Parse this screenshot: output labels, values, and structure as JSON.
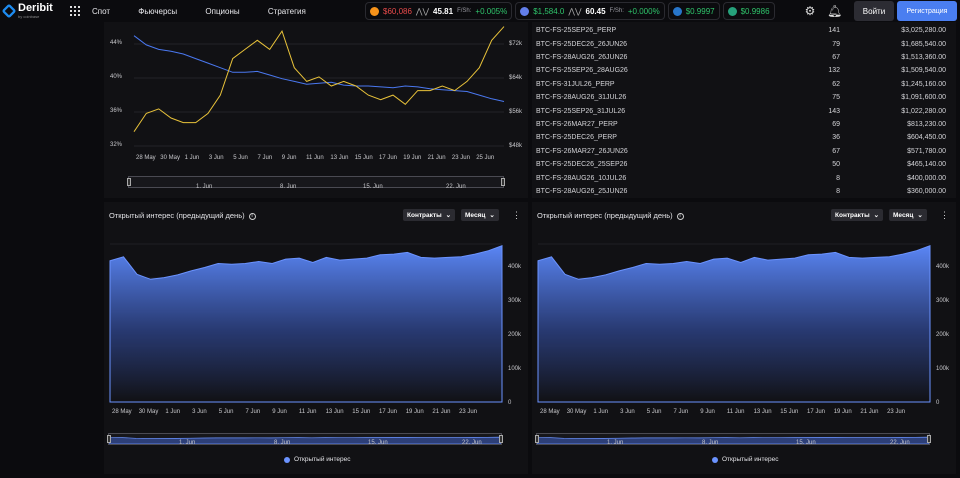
{
  "header": {
    "brand": "Deribit",
    "brand_sub": "by coinbase",
    "nav": [
      "Спот",
      "Фьючерсы",
      "Опционы",
      "Стратегия"
    ],
    "tickers": [
      {
        "icon": "btc-coin-icon",
        "color": "#f7931a",
        "value": "$60,086",
        "value_class": "neg",
        "extra": "",
        "change": ""
      },
      {
        "icon": "vol-icon",
        "color": "#888888",
        "value": "45.81",
        "value_class": "bold",
        "extra": "F/Sh:",
        "change": "+0.005%"
      },
      {
        "icon": "eth-coin-icon",
        "color": "#627eea",
        "value": "$1,584.0",
        "value_class": "pos",
        "extra": "",
        "change": ""
      },
      {
        "icon": "vol-icon",
        "color": "#888888",
        "value": "60.45",
        "value_class": "bold",
        "extra": "F/Sh:",
        "change": "+0.000%"
      },
      {
        "icon": "usdc-coin-icon",
        "color": "#2775ca",
        "value": "$0.9997",
        "value_class": "pos",
        "extra": "",
        "change": ""
      },
      {
        "icon": "usdt-coin-icon",
        "color": "#26a17b",
        "value": "$0.9986",
        "value_class": "pos",
        "extra": "",
        "change": ""
      }
    ],
    "login": "Войти",
    "register": "Регистрация"
  },
  "top_chart": {
    "y_left": [
      "44%",
      "40%",
      "36%",
      "32%"
    ],
    "y_right": [
      "$72k",
      "$64k",
      "$56k",
      "$48k"
    ],
    "x_labels": [
      "28 May",
      "30 May",
      "1 Jun",
      "3 Jun",
      "5 Jun",
      "7 Jun",
      "9 Jun",
      "11 Jun",
      "13 Jun",
      "15 Jun",
      "17 Jun",
      "19 Jun",
      "21 Jun",
      "23 Jun",
      "25 Jun"
    ],
    "nav_labels": [
      "1. Jun",
      "8. Jun",
      "15. Jun",
      "22. Jun"
    ]
  },
  "table": {
    "rows": [
      {
        "inst": "BTC-FS-25SEP26_PERP",
        "cnt": "141",
        "val": "$3,025,280.00"
      },
      {
        "inst": "BTC-FS-25DEC26_26JUN26",
        "cnt": "79",
        "val": "$1,685,540.00"
      },
      {
        "inst": "BTC-FS-28AUG26_26JUN26",
        "cnt": "67",
        "val": "$1,513,360.00"
      },
      {
        "inst": "BTC-FS-25SEP26_28AUG26",
        "cnt": "132",
        "val": "$1,509,540.00"
      },
      {
        "inst": "BTC-FS-31JUL26_PERP",
        "cnt": "62",
        "val": "$1,245,160.00"
      },
      {
        "inst": "BTC-FS-28AUG26_31JUL26",
        "cnt": "75",
        "val": "$1,091,600.00"
      },
      {
        "inst": "BTC-FS-25SEP26_31JUL26",
        "cnt": "143",
        "val": "$1,022,280.00"
      },
      {
        "inst": "BTC-FS-26MAR27_PERP",
        "cnt": "69",
        "val": "$813,230.00"
      },
      {
        "inst": "BTC-FS-25DEC26_PERP",
        "cnt": "36",
        "val": "$604,450.00"
      },
      {
        "inst": "BTC-FS-26MAR27_26JUN26",
        "cnt": "67",
        "val": "$571,780.00"
      },
      {
        "inst": "BTC-FS-25DEC26_25SEP26",
        "cnt": "50",
        "val": "$465,140.00"
      },
      {
        "inst": "BTC-FS-28AUG26_10JUL26",
        "cnt": "8",
        "val": "$400,000.00"
      },
      {
        "inst": "BTC-FS-28AUG26_25JUN26",
        "cnt": "8",
        "val": "$360,000.00"
      }
    ]
  },
  "oi_panels": [
    {
      "title": "Открытый интерес (предыдущий день)",
      "dd1": "Контракты",
      "dd2": "Месяц",
      "legend": "Открытый интерес",
      "y_labels": [
        "400k",
        "300k",
        "200k",
        "100k",
        "0"
      ],
      "x_labels": [
        "28 May",
        "30 May",
        "1 Jun",
        "3 Jun",
        "5 Jun",
        "7 Jun",
        "9 Jun",
        "11 Jun",
        "13 Jun",
        "15 Jun",
        "17 Jun",
        "19 Jun",
        "21 Jun",
        "23 Jun"
      ],
      "nav_labels": [
        "1. Jun",
        "8. Jun",
        "15. Jun",
        "22. Jun"
      ]
    },
    {
      "title": "Открытый интерес (предыдущий день)",
      "dd1": "Контракты",
      "dd2": "Месяц",
      "legend": "Открытый интерес",
      "y_labels": [
        "400k",
        "300k",
        "200k",
        "100k",
        "0"
      ],
      "x_labels": [
        "28 May",
        "30 May",
        "1 Jun",
        "3 Jun",
        "5 Jun",
        "7 Jun",
        "9 Jun",
        "11 Jun",
        "13 Jun",
        "15 Jun",
        "17 Jun",
        "19 Jun",
        "21 Jun",
        "23 Jun"
      ],
      "nav_labels": [
        "1. Jun",
        "8. Jun",
        "15. Jun",
        "22. Jun"
      ]
    }
  ],
  "chart_data": [
    {
      "type": "line",
      "x": [
        "27 May",
        "28 May",
        "29 May",
        "30 May",
        "31 May",
        "1 Jun",
        "2 Jun",
        "3 Jun",
        "4 Jun",
        "5 Jun",
        "6 Jun",
        "7 Jun",
        "8 Jun",
        "9 Jun",
        "10 Jun",
        "11 Jun",
        "12 Jun",
        "13 Jun",
        "14 Jun",
        "15 Jun",
        "16 Jun",
        "17 Jun",
        "18 Jun",
        "19 Jun",
        "20 Jun",
        "21 Jun",
        "22 Jun",
        "23 Jun",
        "24 Jun",
        "25 Jun",
        "26 Jun"
      ],
      "series": [
        {
          "values": [
            44.5,
            43.5,
            43.0,
            42.8,
            42.5,
            42.0,
            41.5,
            41.0,
            40.5,
            40.5,
            40.6,
            40.2,
            39.8,
            39.5,
            39.2,
            39.3,
            39.4,
            39.1,
            39.0,
            39.0,
            38.9,
            38.8,
            39.0,
            38.9,
            38.7,
            38.6,
            38.5,
            38.4,
            38.0,
            37.6,
            37.3
          ],
          "axis": "left",
          "color": "#4a78f0"
        },
        {
          "values": [
            52,
            56,
            57,
            55,
            54,
            54,
            56,
            60,
            68,
            70,
            72,
            70,
            74,
            66,
            63,
            64,
            62,
            63,
            62,
            60,
            59,
            60,
            58,
            61,
            61,
            62,
            61,
            63,
            66,
            72,
            75
          ],
          "axis": "right",
          "color": "#e8c23a"
        }
      ],
      "ylim_left": [
        32,
        46
      ],
      "ylim_right": [
        48,
        76
      ]
    },
    {
      "type": "area",
      "x": [
        "27 May",
        "28 May",
        "29 May",
        "30 May",
        "31 May",
        "1 Jun",
        "2 Jun",
        "3 Jun",
        "4 Jun",
        "5 Jun",
        "6 Jun",
        "7 Jun",
        "8 Jun",
        "9 Jun",
        "10 Jun",
        "11 Jun",
        "12 Jun",
        "13 Jun",
        "14 Jun",
        "15 Jun",
        "16 Jun",
        "17 Jun",
        "18 Jun",
        "19 Jun",
        "20 Jun",
        "21 Jun",
        "22 Jun",
        "23 Jun",
        "24 Jun",
        "25 Jun"
      ],
      "series": [
        {
          "name": "Открытый интерес",
          "values": [
            420000,
            432000,
            380000,
            365000,
            370000,
            378000,
            390000,
            400000,
            412000,
            410000,
            412000,
            418000,
            412000,
            425000,
            428000,
            415000,
            430000,
            422000,
            425000,
            428000,
            438000,
            440000,
            445000,
            430000,
            428000,
            430000,
            432000,
            440000,
            450000,
            465000
          ]
        }
      ],
      "ylim": [
        0,
        470000
      ]
    },
    {
      "type": "area",
      "x": [
        "27 May",
        "28 May",
        "29 May",
        "30 May",
        "31 May",
        "1 Jun",
        "2 Jun",
        "3 Jun",
        "4 Jun",
        "5 Jun",
        "6 Jun",
        "7 Jun",
        "8 Jun",
        "9 Jun",
        "10 Jun",
        "11 Jun",
        "12 Jun",
        "13 Jun",
        "14 Jun",
        "15 Jun",
        "16 Jun",
        "17 Jun",
        "18 Jun",
        "19 Jun",
        "20 Jun",
        "21 Jun",
        "22 Jun",
        "23 Jun",
        "24 Jun",
        "25 Jun"
      ],
      "series": [
        {
          "name": "Открытый интерес",
          "values": [
            420000,
            432000,
            380000,
            365000,
            370000,
            378000,
            390000,
            400000,
            412000,
            410000,
            412000,
            418000,
            412000,
            425000,
            428000,
            415000,
            430000,
            422000,
            425000,
            428000,
            438000,
            440000,
            445000,
            430000,
            428000,
            430000,
            432000,
            440000,
            450000,
            465000
          ]
        }
      ],
      "ylim": [
        0,
        470000
      ]
    }
  ]
}
